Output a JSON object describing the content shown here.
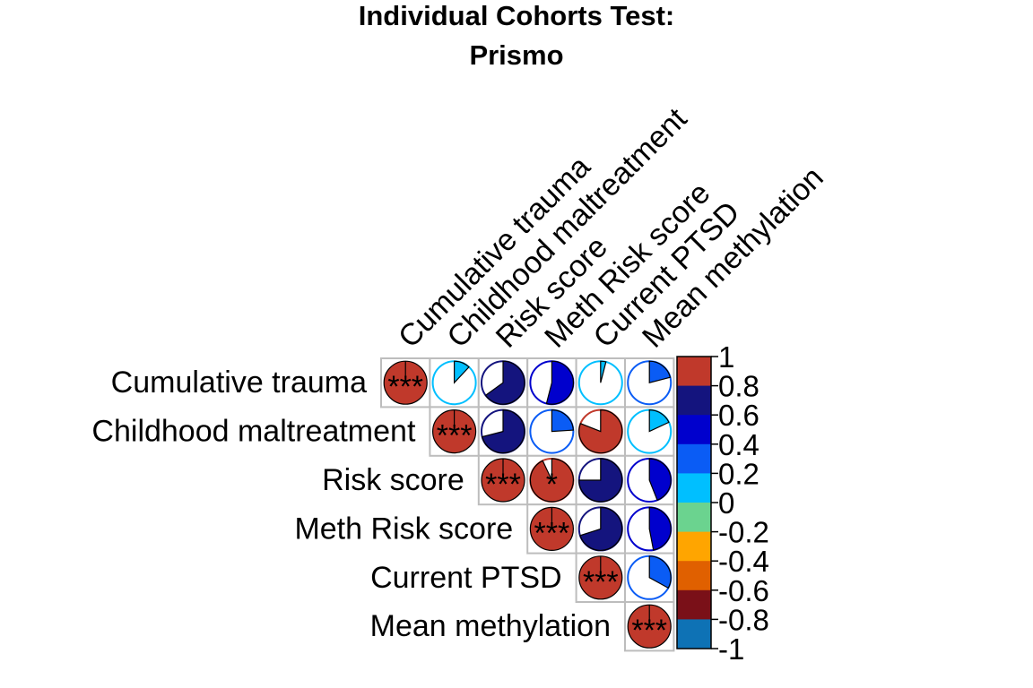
{
  "chart_data": {
    "type": "correlation-matrix-pie",
    "title_line1": "Individual Cohorts Test:",
    "title_line2": "Prismo",
    "variables": [
      "Cumulative trauma",
      "Childhood maltreatment",
      "Risk score",
      "Meth Risk score",
      "Current PTSD",
      "Mean methylation"
    ],
    "layout": "upper-triangle",
    "cells": [
      {
        "row": 0,
        "col": 0,
        "r": 1.0,
        "sig": "***"
      },
      {
        "row": 0,
        "col": 1,
        "r": 0.12,
        "sig": ""
      },
      {
        "row": 0,
        "col": 2,
        "r": 0.65,
        "sig": ""
      },
      {
        "row": 0,
        "col": 3,
        "r": 0.54,
        "sig": ""
      },
      {
        "row": 0,
        "col": 4,
        "r": 0.04,
        "sig": ""
      },
      {
        "row": 0,
        "col": 5,
        "r": 0.21,
        "sig": ""
      },
      {
        "row": 1,
        "col": 1,
        "r": 1.0,
        "sig": "***"
      },
      {
        "row": 1,
        "col": 2,
        "r": 0.71,
        "sig": ""
      },
      {
        "row": 1,
        "col": 3,
        "r": 0.24,
        "sig": ""
      },
      {
        "row": 1,
        "col": 4,
        "r": 0.81,
        "sig": ""
      },
      {
        "row": 1,
        "col": 5,
        "r": 0.18,
        "sig": ""
      },
      {
        "row": 2,
        "col": 2,
        "r": 1.0,
        "sig": "***"
      },
      {
        "row": 2,
        "col": 3,
        "r": 0.93,
        "sig": "*"
      },
      {
        "row": 2,
        "col": 4,
        "r": 0.75,
        "sig": ""
      },
      {
        "row": 2,
        "col": 5,
        "r": 0.44,
        "sig": ""
      },
      {
        "row": 3,
        "col": 3,
        "r": 1.0,
        "sig": "***"
      },
      {
        "row": 3,
        "col": 4,
        "r": 0.7,
        "sig": ""
      },
      {
        "row": 3,
        "col": 5,
        "r": 0.47,
        "sig": ""
      },
      {
        "row": 4,
        "col": 4,
        "r": 1.0,
        "sig": "***"
      },
      {
        "row": 4,
        "col": 5,
        "r": 0.33,
        "sig": ""
      },
      {
        "row": 5,
        "col": 5,
        "r": 1.0,
        "sig": "***"
      }
    ],
    "colorbar": {
      "range": [
        -1,
        1
      ],
      "tick_labels": [
        "1",
        "0.8",
        "0.6",
        "0.4",
        "0.2",
        "0",
        "-0.2",
        "-0.4",
        "-0.6",
        "-0.8",
        "-1"
      ],
      "bins": [
        {
          "from": 0.8,
          "to": 1.0,
          "color": "#C0392B"
        },
        {
          "from": 0.6,
          "to": 0.8,
          "color": "#14147E"
        },
        {
          "from": 0.4,
          "to": 0.6,
          "color": "#0000CD"
        },
        {
          "from": 0.2,
          "to": 0.4,
          "color": "#0A5CF5"
        },
        {
          "from": 0.0,
          "to": 0.2,
          "color": "#00BFFF"
        },
        {
          "from": -0.2,
          "to": 0.0,
          "color": "#6BD38F"
        },
        {
          "from": -0.4,
          "to": -0.2,
          "color": "#FFA500"
        },
        {
          "from": -0.6,
          "to": -0.4,
          "color": "#E06000"
        },
        {
          "from": -0.8,
          "to": -0.6,
          "color": "#7A1018"
        },
        {
          "from": -1.0,
          "to": -0.8,
          "color": "#0E72B5"
        }
      ]
    }
  }
}
